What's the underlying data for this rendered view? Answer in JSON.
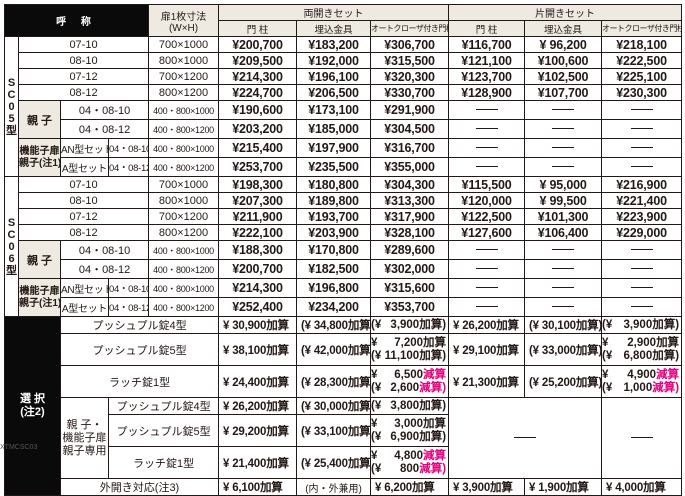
{
  "header": {
    "name_label": "呼 称",
    "size_label_line1": "扉1枚寸法",
    "size_label_line2": "(W×H)",
    "double_set": "両開きセット",
    "single_set": "片開きセット",
    "col_pillar": "門 柱",
    "col_embedded": "埋込金具",
    "col_autocloser": "オートクローザ付き門柱"
  },
  "sections": [
    {
      "model": [
        "S",
        "C",
        "0",
        "5",
        "型"
      ],
      "rows": [
        {
          "code": "07-10",
          "size": "700×1000",
          "d": [
            "¥200,700",
            "¥183,200",
            "¥306,700"
          ],
          "s": [
            "¥116,700",
            "¥ 96,200",
            "¥218,100"
          ]
        },
        {
          "code": "08-10",
          "size": "800×1000",
          "d": [
            "¥209,500",
            "¥192,000",
            "¥315,500"
          ],
          "s": [
            "¥121,100",
            "¥100,600",
            "¥222,500"
          ]
        },
        {
          "code": "07-12",
          "size": "700×1200",
          "d": [
            "¥214,300",
            "¥196,100",
            "¥320,300"
          ],
          "s": [
            "¥123,700",
            "¥102,500",
            "¥225,100"
          ]
        },
        {
          "code": "08-12",
          "size": "800×1200",
          "d": [
            "¥224,700",
            "¥206,500",
            "¥330,700"
          ],
          "s": [
            "¥128,900",
            "¥107,700",
            "¥230,300"
          ]
        }
      ],
      "oyako_label": "親 子",
      "oyako_rows": [
        {
          "code": "04・08-10",
          "size": "400・800×1000",
          "d": [
            "¥190,600",
            "¥173,100",
            "¥291,900"
          ]
        },
        {
          "code": "04・08-12",
          "size": "400・800×1200",
          "d": [
            "¥203,200",
            "¥185,000",
            "¥304,500"
          ]
        }
      ],
      "kino_label_line1": "機能子扉",
      "kino_label_line2": "親子(注1)",
      "kino_rows": [
        {
          "set": "AN型セット",
          "code": "04・08-10",
          "size": "400・800×1000",
          "d": [
            "¥215,400",
            "¥197,900",
            "¥316,700"
          ]
        },
        {
          "set": "A型セット",
          "code": "04・08-12",
          "size": "400・800×1200",
          "d": [
            "¥253,700",
            "¥235,500",
            "¥355,000"
          ]
        }
      ]
    },
    {
      "model": [
        "S",
        "C",
        "0",
        "6",
        "型"
      ],
      "rows": [
        {
          "code": "07-10",
          "size": "700×1000",
          "d": [
            "¥198,300",
            "¥180,800",
            "¥304,300"
          ],
          "s": [
            "¥115,500",
            "¥ 95,000",
            "¥216,900"
          ]
        },
        {
          "code": "08-10",
          "size": "800×1000",
          "d": [
            "¥207,300",
            "¥189,800",
            "¥313,300"
          ],
          "s": [
            "¥120,000",
            "¥ 99,500",
            "¥221,400"
          ]
        },
        {
          "code": "07-12",
          "size": "700×1200",
          "d": [
            "¥211,900",
            "¥193,700",
            "¥317,900"
          ],
          "s": [
            "¥122,500",
            "¥101,300",
            "¥223,900"
          ]
        },
        {
          "code": "08-12",
          "size": "800×1200",
          "d": [
            "¥222,100",
            "¥203,900",
            "¥328,100"
          ],
          "s": [
            "¥127,600",
            "¥106,400",
            "¥229,000"
          ]
        }
      ],
      "oyako_label": "親 子",
      "oyako_rows": [
        {
          "code": "04・08-10",
          "size": "400・800×1000",
          "d": [
            "¥188,300",
            "¥170,800",
            "¥289,600"
          ]
        },
        {
          "code": "04・08-12",
          "size": "400・800×1200",
          "d": [
            "¥200,700",
            "¥182,500",
            "¥302,000"
          ]
        }
      ],
      "kino_label_line1": "機能子扉",
      "kino_label_line2": "親子(注1)",
      "kino_rows": [
        {
          "set": "AN型セット",
          "code": "04・08-10",
          "size": "400・800×1000",
          "d": [
            "¥214,300",
            "¥196,800",
            "¥315,600"
          ]
        },
        {
          "set": "A型セット",
          "code": "04・08-12",
          "size": "400・800×1200",
          "d": [
            "¥252,400",
            "¥234,200",
            "¥353,700"
          ]
        }
      ]
    }
  ],
  "options": {
    "select_label_line1": "選 択",
    "select_label_line2": "(注2)",
    "general": [
      {
        "label": "プッシュプル錠4型",
        "d1": "¥ 30,900加算",
        "d2": "(¥ 34,800加算)",
        "d3": [
          {
            "yen": "(¥",
            "amt": "3,900",
            "op": "加算)",
            "red": false
          }
        ],
        "s1": "¥ 26,200加算",
        "s2": "(¥ 30,100加算)",
        "s3": [
          {
            "yen": "(¥",
            "amt": "3,900",
            "op": "加算)",
            "red": false
          }
        ]
      },
      {
        "label": "プッシュプル錠5型",
        "d1": "¥ 38,100加算",
        "d2": "(¥ 42,000加算)",
        "d3": [
          {
            "yen": "¥",
            "amt": "7,200",
            "op": "加算",
            "red": false
          },
          {
            "yen": "(¥",
            "amt": "11,100",
            "op": "加算)",
            "red": false
          }
        ],
        "s1": "¥ 29,100加算",
        "s2": "(¥ 33,000加算)",
        "s3": [
          {
            "yen": "¥",
            "amt": "2,900",
            "op": "加算",
            "red": false
          },
          {
            "yen": "(¥",
            "amt": "6,800",
            "op": "加算)",
            "red": false
          }
        ]
      },
      {
        "label": "ラッチ錠1型",
        "d1": "¥ 24,400加算",
        "d2": "(¥ 28,300加算)",
        "d3": [
          {
            "yen": "¥",
            "amt": "6,500",
            "op": "減算",
            "red": true
          },
          {
            "yen": "(¥",
            "amt": "2,600",
            "op": "減算)",
            "red": true
          }
        ],
        "s1": "¥ 21,300加算",
        "s2": "(¥ 25,200加算)",
        "s3": [
          {
            "yen": "¥",
            "amt": "4,900",
            "op": "減算",
            "red": true
          },
          {
            "yen": "(¥",
            "amt": "1,000",
            "op": "減算)",
            "red": true
          }
        ]
      }
    ],
    "oyako_group_line1": "親 子・",
    "oyako_group_line2": "機能子扉",
    "oyako_group_line3": "親子専用",
    "oyako": [
      {
        "label": "プッシュプル錠4型",
        "d1": "¥ 26,200加算",
        "d2": "(¥ 30,000加算)",
        "d3": [
          {
            "yen": "(¥",
            "amt": "3,800",
            "op": "加算)",
            "red": false
          }
        ]
      },
      {
        "label": "プッシュプル錠5型",
        "d1": "¥ 29,200加算",
        "d2": "(¥ 33,100加算)",
        "d3": [
          {
            "yen": "¥",
            "amt": "3,000",
            "op": "加算",
            "red": false
          },
          {
            "yen": "(¥",
            "amt": "6,900",
            "op": "加算)",
            "red": false
          }
        ]
      },
      {
        "label": "ラッチ錠1型",
        "d1": "¥ 21,400加算",
        "d2": "(¥ 25,400加算)",
        "d3": [
          {
            "yen": "¥",
            "amt": "4,800",
            "op": "減算",
            "red": true
          },
          {
            "yen": "(¥",
            "amt": "800",
            "op": "減算)",
            "red": true
          }
        ]
      }
    ],
    "outward": {
      "label": "外開き対応(注3)",
      "d1": "¥  6,100加算",
      "d2": "(内・外兼用)",
      "d3": "¥  6,200加算",
      "s1": "¥  3,900加算",
      "s2": "¥  1,900加算",
      "s3": "¥  4,000加算"
    }
  },
  "footer_code": "XTMCSC03",
  "colors": {
    "black_header": "#0a0a0a",
    "beige_header": "#eeeae2",
    "reduction_red": "#e4007f",
    "text": "#231815"
  }
}
